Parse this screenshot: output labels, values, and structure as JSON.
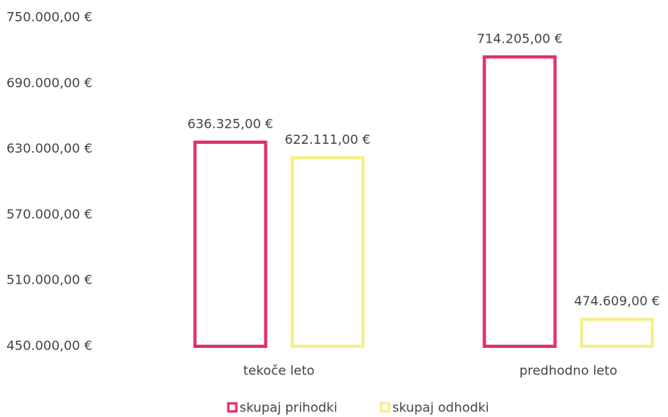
{
  "chart_data": {
    "type": "bar",
    "categories": [
      "tekoče leto",
      "predhodno leto"
    ],
    "series": [
      {
        "name": "skupaj prihodki",
        "color": "#e0306e",
        "values": [
          636325,
          714205
        ],
        "value_labels": [
          "636.325,00 €",
          "714.205,00 €"
        ]
      },
      {
        "name": "skupaj odhodki",
        "color": "#f7ef8a",
        "values": [
          622111,
          474609
        ],
        "value_labels": [
          "622.111,00 €",
          "474.609,00 €"
        ]
      }
    ],
    "ylim": [
      450000,
      750000
    ],
    "yticks": [
      {
        "value": 450000,
        "label": "450.000,00 €"
      },
      {
        "value": 510000,
        "label": "510.000,00 €"
      },
      {
        "value": 570000,
        "label": "570.000,00 €"
      },
      {
        "value": 630000,
        "label": "630.000,00 €"
      },
      {
        "value": 690000,
        "label": "690.000,00 €"
      },
      {
        "value": 750000,
        "label": "750.000,00 €"
      }
    ],
    "grid": false,
    "legend": "bottom"
  }
}
